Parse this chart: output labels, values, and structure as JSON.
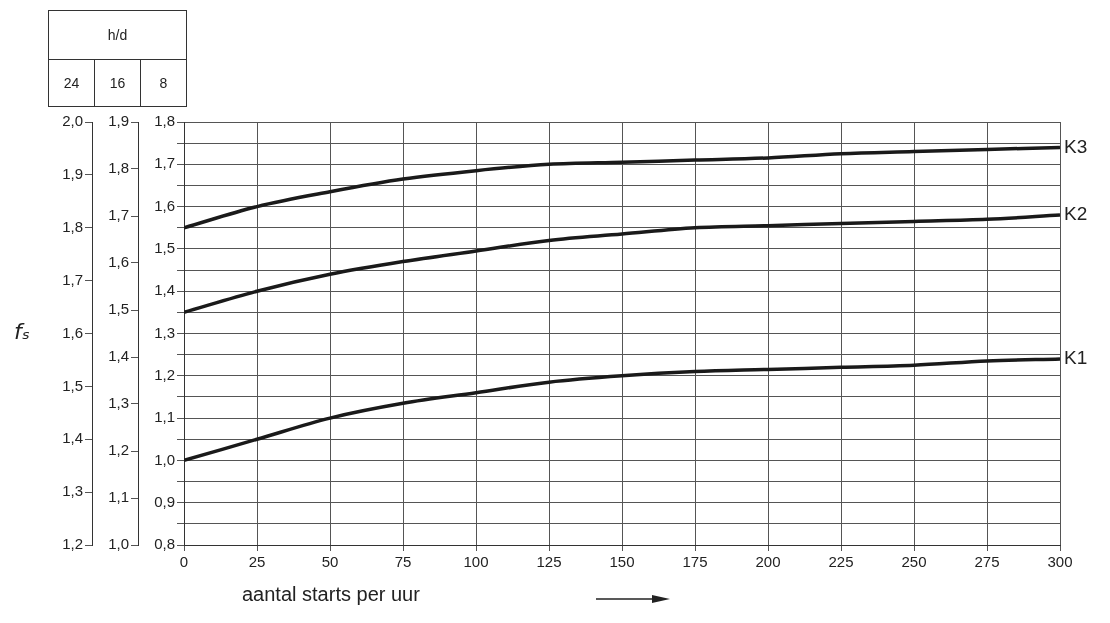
{
  "chart_data": {
    "type": "line",
    "annotations": [
      "h/d",
      "24",
      "16",
      "8"
    ],
    "y3label": "fₛ",
    "xlabel": "aantal starts per uur",
    "x": [
      0,
      25,
      50,
      75,
      100,
      125,
      150,
      175,
      200,
      225,
      250,
      275,
      300
    ],
    "series": [
      {
        "name": "K3",
        "color": "#1a1a1a",
        "values": [
          1.55,
          1.6,
          1.635,
          1.665,
          1.685,
          1.7,
          1.705,
          1.71,
          1.715,
          1.725,
          1.73,
          1.735,
          1.74
        ]
      },
      {
        "name": "K2",
        "color": "#1a1a1a",
        "values": [
          1.35,
          1.4,
          1.44,
          1.47,
          1.495,
          1.52,
          1.535,
          1.55,
          1.555,
          1.56,
          1.565,
          1.57,
          1.58
        ]
      },
      {
        "name": "K1",
        "color": "#1a1a1a",
        "values": [
          1.0,
          1.05,
          1.1,
          1.135,
          1.16,
          1.185,
          1.2,
          1.21,
          1.215,
          1.22,
          1.225,
          1.235,
          1.24
        ]
      }
    ],
    "xlim": [
      0,
      300
    ],
    "xticks": [
      0,
      25,
      50,
      75,
      100,
      125,
      150,
      175,
      200,
      225,
      250,
      275,
      300
    ],
    "ylim": [
      0.8,
      1.8
    ],
    "yticks": [
      {
        "value": 0.8,
        "label": "0,8"
      },
      {
        "value": 0.85,
        "label": null
      },
      {
        "value": 0.9,
        "label": "0,9"
      },
      {
        "value": 0.95,
        "label": null
      },
      {
        "value": 1.0,
        "label": "1,0"
      },
      {
        "value": 1.05,
        "label": null
      },
      {
        "value": 1.1,
        "label": "1,1"
      },
      {
        "value": 1.15,
        "label": null
      },
      {
        "value": 1.2,
        "label": "1,2"
      },
      {
        "value": 1.25,
        "label": null
      },
      {
        "value": 1.3,
        "label": "1,3"
      },
      {
        "value": 1.35,
        "label": null
      },
      {
        "value": 1.4,
        "label": "1,4"
      },
      {
        "value": 1.45,
        "label": null
      },
      {
        "value": 1.5,
        "label": "1,5"
      },
      {
        "value": 1.55,
        "label": null
      },
      {
        "value": 1.6,
        "label": "1,6"
      },
      {
        "value": 1.65,
        "label": null
      },
      {
        "value": 1.7,
        "label": "1,7"
      },
      {
        "value": 1.75,
        "label": null
      },
      {
        "value": 1.8,
        "label": "1,8"
      }
    ],
    "y2lim": [
      1.0,
      1.9
    ],
    "y2ticks": [
      {
        "value": 1.0,
        "label": "1,0"
      },
      {
        "value": 1.1,
        "label": "1,1"
      },
      {
        "value": 1.2,
        "label": "1,2"
      },
      {
        "value": 1.3,
        "label": "1,3"
      },
      {
        "value": 1.4,
        "label": "1,4"
      },
      {
        "value": 1.5,
        "label": "1,5"
      },
      {
        "value": 1.6,
        "label": "1,6"
      },
      {
        "value": 1.7,
        "label": "1,7"
      },
      {
        "value": 1.8,
        "label": "1,8"
      },
      {
        "value": 1.9,
        "label": "1,9"
      }
    ],
    "y3lim": [
      1.2,
      2.0
    ],
    "y3ticks": [
      {
        "value": 1.2,
        "label": "1,2"
      },
      {
        "value": 1.3,
        "label": "1,3"
      },
      {
        "value": 1.4,
        "label": "1,4"
      },
      {
        "value": 1.5,
        "label": "1,5"
      },
      {
        "value": 1.6,
        "label": "1,6"
      },
      {
        "value": 1.7,
        "label": "1,7"
      },
      {
        "value": 1.8,
        "label": "1,8"
      },
      {
        "value": 1.9,
        "label": "1,9"
      },
      {
        "value": 2.0,
        "label": "2,0"
      }
    ],
    "grid": true
  }
}
